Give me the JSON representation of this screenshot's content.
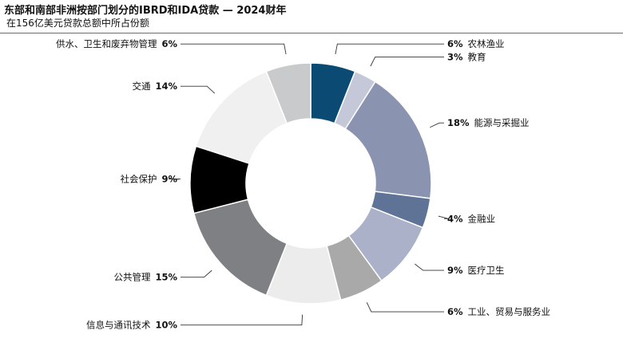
{
  "header": {
    "title": "东部和南部非洲按部门划分的IBRD和IDA贷款 — 2024财年",
    "subtitle": "在156亿美元贷款总额中所占份额"
  },
  "chart_data": {
    "type": "pie",
    "donut": true,
    "unit": "%",
    "title": "东部和南部非洲按部门划分的IBRD和IDA贷款 — 2024财年",
    "subtitle": "在156亿美元贷款总额中所占份额",
    "categories": [
      "农林渔业",
      "教育",
      "能源与采掘业",
      "金融业",
      "医疗卫生",
      "工业、贸易与服务业",
      "信息与通讯技术",
      "公共管理",
      "社会保护",
      "交通",
      "供水、卫生和废弃物管理"
    ],
    "values": [
      6,
      3,
      18,
      4,
      9,
      6,
      10,
      15,
      9,
      14,
      6
    ],
    "colors": [
      "#0b4a72",
      "#c4c8d9",
      "#8a94b0",
      "#5e7396",
      "#aab1c9",
      "#a9a9a9",
      "#ececec",
      "#7f8083",
      "#000000",
      "#f0f0f0",
      "#c9cacc"
    ],
    "label_sides": [
      "right",
      "right",
      "right",
      "right",
      "right",
      "right",
      "left",
      "left",
      "left",
      "left",
      "left"
    ]
  }
}
